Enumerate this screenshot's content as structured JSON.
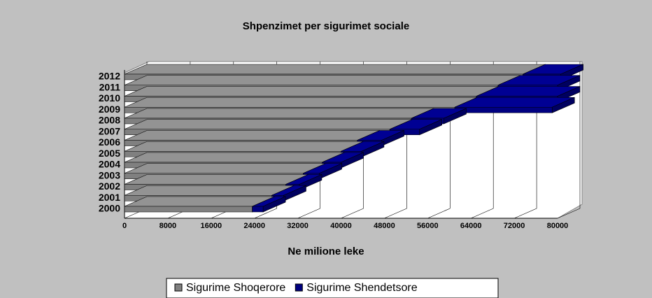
{
  "chart_data": {
    "type": "bar",
    "orientation": "horizontal",
    "stacked": true,
    "three_d": true,
    "title": "Shpenzimet per sigurimet sociale",
    "x_label": "Ne milione leke",
    "categories": [
      "2000",
      "2001",
      "2002",
      "2003",
      "2004",
      "2005",
      "2006",
      "2007",
      "2008",
      "2009",
      "2010",
      "2011",
      "2012"
    ],
    "series": [
      {
        "name": "Sigurime Shoqerore",
        "color": "#808080",
        "values": [
          23600,
          27200,
          29800,
          33000,
          36500,
          40000,
          43000,
          49000,
          53000,
          61000,
          65000,
          69000,
          73600
        ]
      },
      {
        "name": "Sigurime Shendetsore",
        "color": "#000080",
        "values": [
          2000,
          2200,
          2500,
          3000,
          3500,
          3800,
          4500,
          5500,
          6000,
          18000,
          15000,
          11000,
          7000
        ]
      }
    ],
    "xlim": [
      0,
      80000
    ],
    "xticks": [
      0,
      8000,
      16000,
      24000,
      32000,
      40000,
      48000,
      56000,
      64000,
      72000,
      80000
    ],
    "legend": "bottom"
  }
}
